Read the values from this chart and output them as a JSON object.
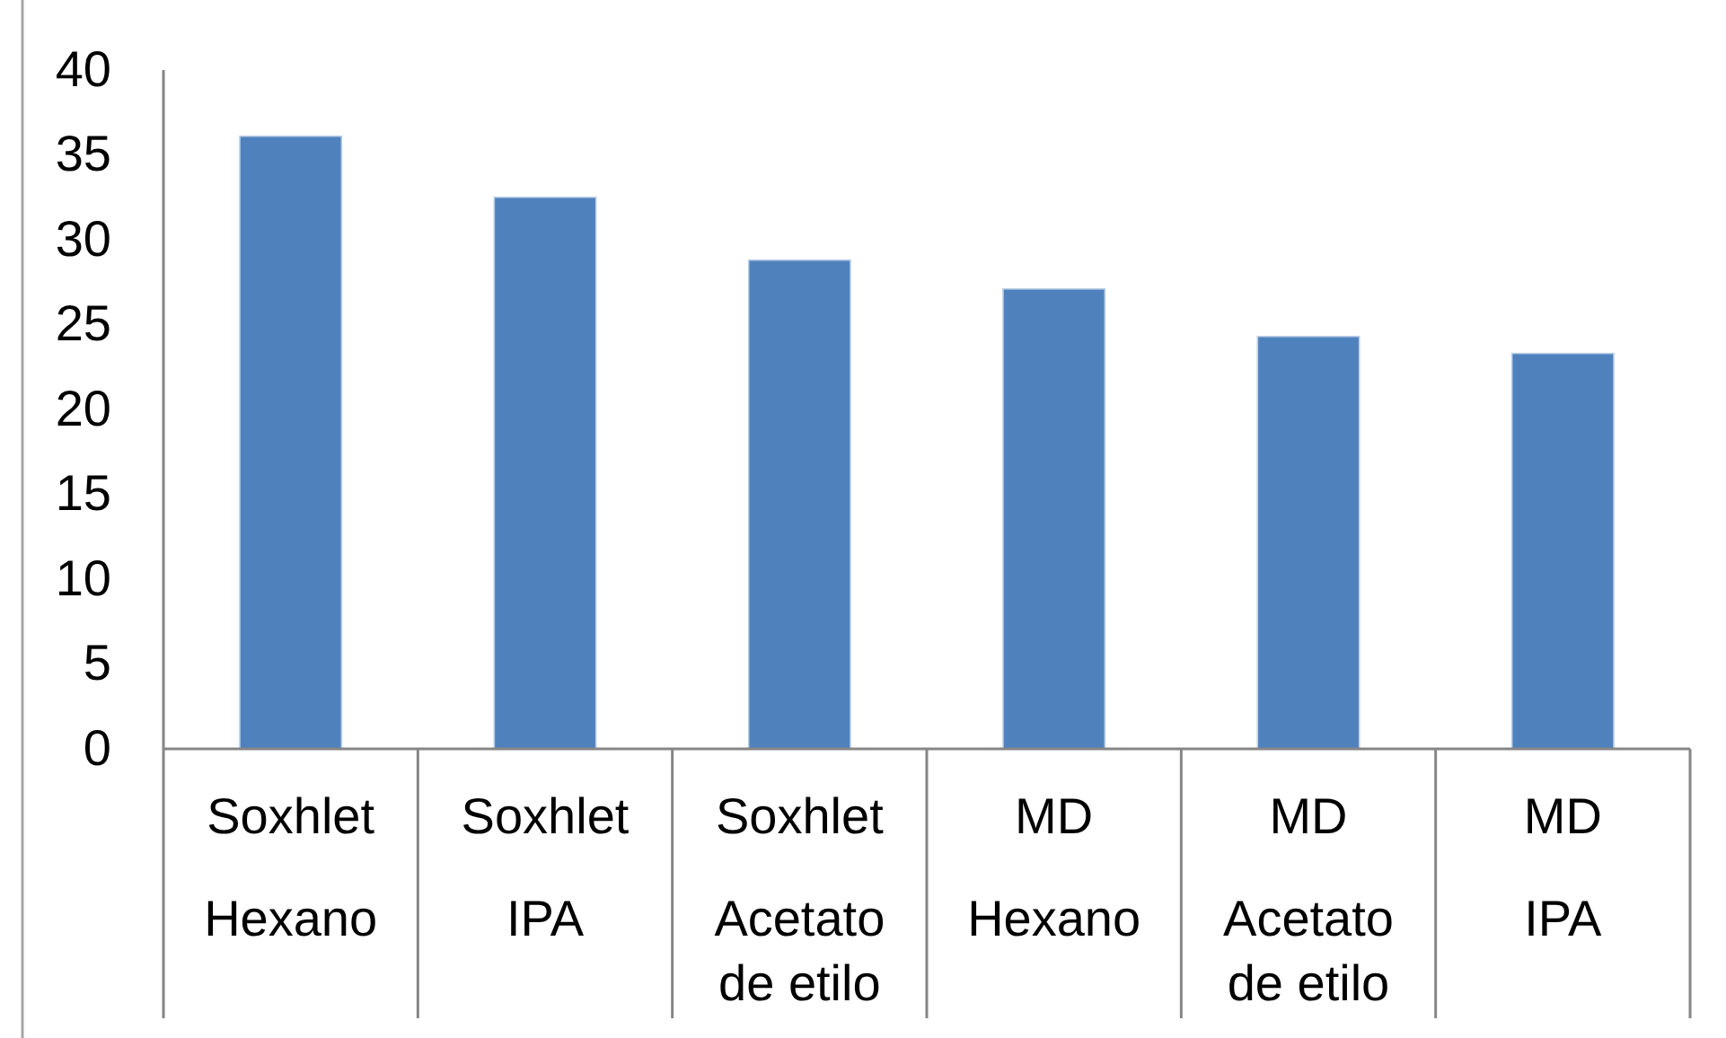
{
  "chart_data": {
    "type": "bar",
    "categories": [
      "Soxhlet\nHexano",
      "Soxhlet\nIPA",
      "Soxhlet\nAcetato de etilo",
      "MD\nHexano",
      "MD\nAcetato de etilo",
      "MD\nIPA"
    ],
    "values": [
      36.1,
      32.5,
      28.8,
      27.1,
      24.3,
      23.3
    ],
    "color": "#4f81bd",
    "ylim": [
      0,
      40
    ],
    "yticks": [
      0,
      5,
      10,
      15,
      20,
      25,
      30,
      35,
      40
    ]
  }
}
